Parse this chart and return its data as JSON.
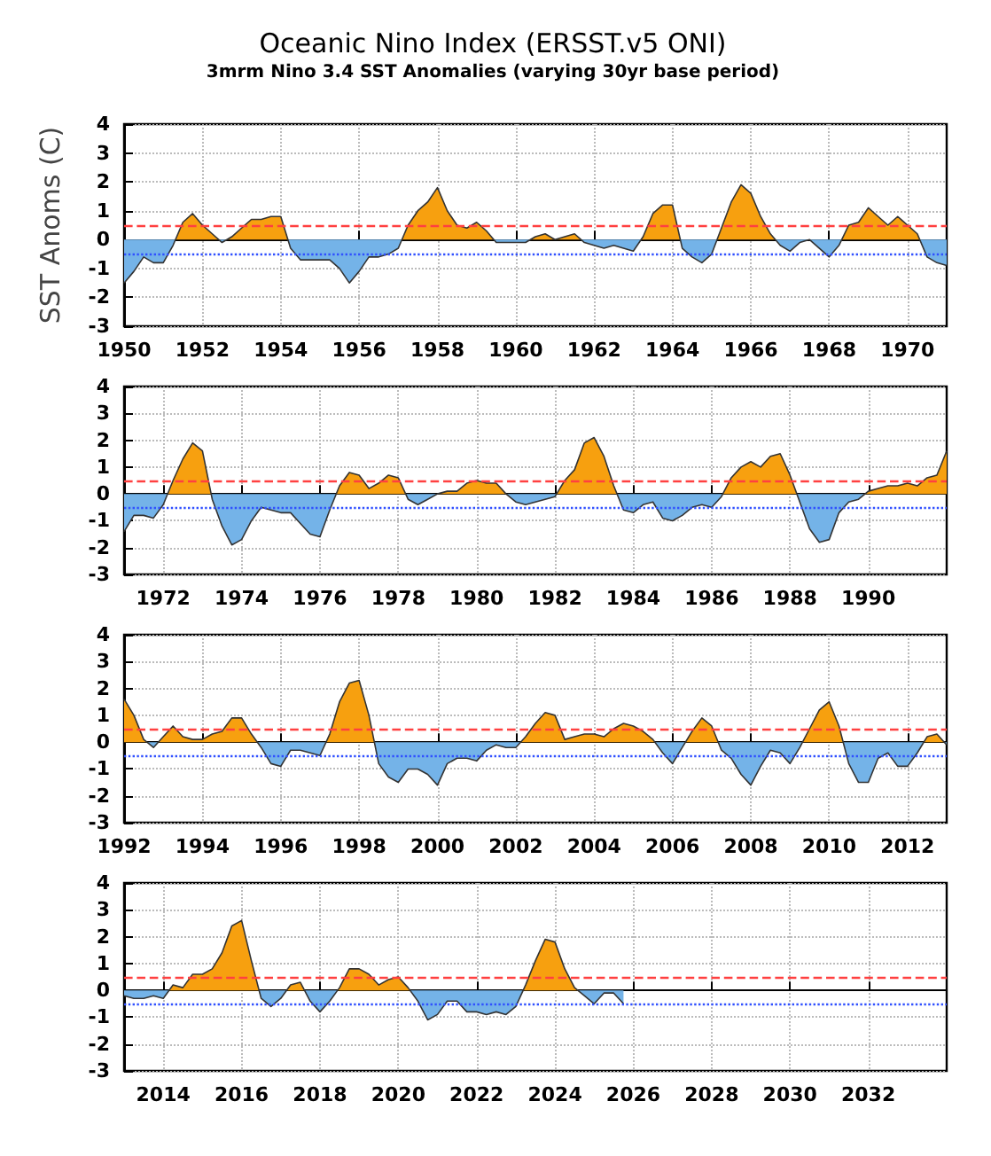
{
  "chart_data": [
    {
      "type": "area",
      "title": "Oceanic Nino Index (ERSST.v5 ONI)",
      "subtitle": "3mrm Nino 3.4 SST Anomalies (varying 30yr base period)",
      "ylabel": "SST Anoms (C)",
      "x": [
        1950,
        1950.25,
        1950.5,
        1950.75,
        1951,
        1951.25,
        1951.5,
        1951.75,
        1952,
        1952.25,
        1952.5,
        1952.75,
        1953,
        1953.25,
        1953.5,
        1953.75,
        1954,
        1954.25,
        1954.5,
        1954.75,
        1955,
        1955.25,
        1955.5,
        1955.75,
        1956,
        1956.25,
        1956.5,
        1956.75,
        1957,
        1957.25,
        1957.5,
        1957.75,
        1958,
        1958.25,
        1958.5,
        1958.75,
        1959,
        1959.25,
        1959.5,
        1959.75,
        1960,
        1960.25,
        1960.5,
        1960.75,
        1961,
        1961.25,
        1961.5,
        1961.75,
        1962,
        1962.25,
        1962.5,
        1962.75,
        1963,
        1963.25,
        1963.5,
        1963.75,
        1964,
        1964.25,
        1964.5,
        1964.75,
        1965,
        1965.25,
        1965.5,
        1965.75,
        1966,
        1966.25,
        1966.5,
        1966.75,
        1967,
        1967.25,
        1967.5,
        1967.75,
        1968,
        1968.25,
        1968.5,
        1968.75,
        1969,
        1969.25,
        1969.5,
        1969.75,
        1970,
        1970.25,
        1970.5,
        1970.75,
        1971
      ],
      "series": [
        {
          "colors": [
            "#74b3e8",
            "#74b3e8",
            "#74b3e8",
            "#74b3e8",
            "#74b3e8",
            "#74b3e8",
            "#f7a00f",
            "#f7a00f",
            "#f7a00f",
            "#f7a00f",
            "#74b3e8",
            "#f7a00f",
            "#f7a00f",
            "#f7a00f",
            "#f7a00f",
            "#f7a00f",
            "#f7a00f",
            "#74b3e8",
            "#74b3e8",
            "#74b3e8",
            "#74b3e8",
            "#74b3e8",
            "#74b3e8",
            "#74b3e8",
            "#74b3e8",
            "#74b3e8",
            "#74b3e8",
            "#74b3e8",
            "#74b3e8",
            "#f7a00f",
            "#f7a00f",
            "#f7a00f",
            "#f7a00f",
            "#f7a00f",
            "#f7a00f",
            "#f7a00f",
            "#f7a00f",
            "#f7a00f",
            "#74b3e8",
            "#74b3e8",
            "#74b3e8",
            "#74b3e8",
            "#f7a00f",
            "#f7a00f",
            "#f7a00f",
            "#f7a00f",
            "#f7a00f",
            "#74b3e8",
            "#74b3e8",
            "#74b3e8",
            "#74b3e8",
            "#74b3e8",
            "#74b3e8",
            "#f7a00f",
            "#f7a00f",
            "#f7a00f",
            "#f7a00f",
            "#74b3e8",
            "#74b3e8",
            "#74b3e8",
            "#74b3e8",
            "#f7a00f",
            "#f7a00f",
            "#f7a00f",
            "#f7a00f",
            "#f7a00f",
            "#f7a00f",
            "#74b3e8",
            "#74b3e8",
            "#74b3e8",
            "#f7a00f",
            "#74b3e8",
            "#74b3e8",
            "#74b3e8",
            "#f7a00f",
            "#f7a00f",
            "#f7a00f",
            "#f7a00f",
            "#f7a00f",
            "#f7a00f",
            "#f7a00f",
            "#f7a00f",
            "#74b3e8",
            "#74b3e8",
            "#74b3e8"
          ],
          "values": [
            -1.5,
            -1.1,
            -0.6,
            -0.8,
            -0.8,
            -0.2,
            0.6,
            0.9,
            0.5,
            0.2,
            -0.1,
            0.1,
            0.4,
            0.7,
            0.7,
            0.8,
            0.8,
            -0.3,
            -0.7,
            -0.7,
            -0.7,
            -0.7,
            -1.0,
            -1.5,
            -1.1,
            -0.6,
            -0.6,
            -0.5,
            -0.3,
            0.5,
            1.0,
            1.3,
            1.8,
            1.0,
            0.5,
            0.4,
            0.6,
            0.3,
            -0.1,
            -0.1,
            -0.1,
            -0.1,
            0.1,
            0.2,
            0.0,
            0.1,
            0.2,
            -0.1,
            -0.2,
            -0.3,
            -0.2,
            -0.3,
            -0.4,
            0.1,
            0.9,
            1.2,
            1.2,
            -0.3,
            -0.6,
            -0.8,
            -0.5,
            0.4,
            1.3,
            1.9,
            1.6,
            0.8,
            0.2,
            -0.2,
            -0.4,
            -0.1,
            0.0,
            -0.3,
            -0.6,
            -0.2,
            0.5,
            0.6,
            1.1,
            0.8,
            0.5,
            0.8,
            0.5,
            0.2,
            -0.6,
            -0.8,
            -0.9
          ]
        }
      ],
      "xlim": [
        1950,
        1971
      ],
      "xticks": [
        1950,
        1952,
        1954,
        1956,
        1958,
        1960,
        1962,
        1964,
        1966,
        1968,
        1970
      ],
      "ylim": [
        -3,
        4
      ],
      "yticks": [
        -3,
        -2,
        -1,
        0,
        1,
        2,
        3,
        4
      ],
      "grid": true,
      "ref_lines": [
        {
          "axis": "y",
          "value": 0.5,
          "color": "#ff4040",
          "line_style": "dashed"
        },
        {
          "axis": "y",
          "value": -0.5,
          "color": "#3050ff",
          "line_style": "dotted"
        }
      ]
    },
    {
      "type": "area",
      "x": [
        1971,
        1971.25,
        1971.5,
        1971.75,
        1972,
        1972.25,
        1972.5,
        1972.75,
        1973,
        1973.25,
        1973.5,
        1973.75,
        1974,
        1974.25,
        1974.5,
        1974.75,
        1975,
        1975.25,
        1975.5,
        1975.75,
        1976,
        1976.25,
        1976.5,
        1976.75,
        1977,
        1977.25,
        1977.5,
        1977.75,
        1978,
        1978.25,
        1978.5,
        1978.75,
        1979,
        1979.25,
        1979.5,
        1979.75,
        1980,
        1980.25,
        1980.5,
        1980.75,
        1981,
        1981.25,
        1981.5,
        1981.75,
        1982,
        1982.25,
        1982.5,
        1982.75,
        1983,
        1983.25,
        1983.5,
        1983.75,
        1984,
        1984.25,
        1984.5,
        1984.75,
        1985,
        1985.25,
        1985.5,
        1985.75,
        1986,
        1986.25,
        1986.5,
        1986.75,
        1987,
        1987.25,
        1987.5,
        1987.75,
        1988,
        1988.25,
        1988.5,
        1988.75,
        1989,
        1989.25,
        1989.5,
        1989.75,
        1990,
        1990.25,
        1990.5,
        1990.75,
        1991,
        1991.25,
        1991.5,
        1991.75,
        1992
      ],
      "series": [
        {
          "colors": [
            "#74b3e8",
            "#74b3e8",
            "#74b3e8",
            "#74b3e8",
            "#74b3e8",
            "#f7a00f",
            "#f7a00f",
            "#f7a00f",
            "#f7a00f",
            "#74b3e8",
            "#74b3e8",
            "#74b3e8",
            "#74b3e8",
            "#74b3e8",
            "#74b3e8",
            "#74b3e8",
            "#74b3e8",
            "#74b3e8",
            "#74b3e8",
            "#74b3e8",
            "#74b3e8",
            "#74b3e8",
            "#f7a00f",
            "#f7a00f",
            "#f7a00f",
            "#f7a00f",
            "#f7a00f",
            "#f7a00f",
            "#f7a00f",
            "#74b3e8",
            "#74b3e8",
            "#74b3e8",
            "#f7a00f",
            "#f7a00f",
            "#f7a00f",
            "#f7a00f",
            "#f7a00f",
            "#f7a00f",
            "#f7a00f",
            "#f7a00f",
            "#74b3e8",
            "#74b3e8",
            "#74b3e8",
            "#74b3e8",
            "#74b3e8",
            "#f7a00f",
            "#f7a00f",
            "#f7a00f",
            "#f7a00f",
            "#f7a00f",
            "#f7a00f",
            "#74b3e8",
            "#74b3e8",
            "#74b3e8",
            "#74b3e8",
            "#74b3e8",
            "#74b3e8",
            "#74b3e8",
            "#74b3e8",
            "#74b3e8",
            "#74b3e8",
            "#74b3e8",
            "#f7a00f",
            "#f7a00f",
            "#f7a00f",
            "#f7a00f",
            "#f7a00f",
            "#f7a00f",
            "#f7a00f",
            "#74b3e8",
            "#74b3e8",
            "#74b3e8",
            "#74b3e8",
            "#74b3e8",
            "#74b3e8",
            "#74b3e8",
            "#f7a00f",
            "#f7a00f",
            "#f7a00f",
            "#f7a00f",
            "#f7a00f",
            "#f7a00f",
            "#f7a00f",
            "#f7a00f",
            "#f7a00f"
          ],
          "values": [
            -1.4,
            -0.8,
            -0.8,
            -0.9,
            -0.4,
            0.5,
            1.3,
            1.9,
            1.6,
            -0.2,
            -1.2,
            -1.9,
            -1.7,
            -1.0,
            -0.5,
            -0.6,
            -0.7,
            -0.7,
            -1.1,
            -1.5,
            -1.6,
            -0.6,
            0.3,
            0.8,
            0.7,
            0.2,
            0.4,
            0.7,
            0.6,
            -0.2,
            -0.4,
            -0.2,
            0.0,
            0.1,
            0.1,
            0.4,
            0.5,
            0.4,
            0.4,
            0.0,
            -0.3,
            -0.4,
            -0.3,
            -0.2,
            -0.1,
            0.5,
            0.9,
            1.9,
            2.1,
            1.4,
            0.3,
            -0.6,
            -0.7,
            -0.4,
            -0.3,
            -0.9,
            -1.0,
            -0.8,
            -0.5,
            -0.4,
            -0.5,
            -0.1,
            0.6,
            1.0,
            1.2,
            1.0,
            1.4,
            1.5,
            0.7,
            -0.3,
            -1.3,
            -1.8,
            -1.7,
            -0.7,
            -0.3,
            -0.2,
            0.1,
            0.2,
            0.3,
            0.3,
            0.4,
            0.3,
            0.6,
            0.7,
            1.6
          ]
        }
      ],
      "xlim": [
        1971,
        1992
      ],
      "xticks": [
        1972,
        1974,
        1976,
        1978,
        1980,
        1982,
        1984,
        1986,
        1988,
        1990
      ],
      "ylim": [
        -3,
        4
      ],
      "yticks": [
        -3,
        -2,
        -1,
        0,
        1,
        2,
        3,
        4
      ],
      "grid": true,
      "ref_lines": [
        {
          "axis": "y",
          "value": 0.5,
          "color": "#ff4040",
          "line_style": "dashed"
        },
        {
          "axis": "y",
          "value": -0.5,
          "color": "#3050ff",
          "line_style": "dotted"
        }
      ]
    },
    {
      "type": "area",
      "x": [
        1992,
        1992.25,
        1992.5,
        1992.75,
        1993,
        1993.25,
        1993.5,
        1993.75,
        1994,
        1994.25,
        1994.5,
        1994.75,
        1995,
        1995.25,
        1995.5,
        1995.75,
        1996,
        1996.25,
        1996.5,
        1996.75,
        1997,
        1997.25,
        1997.5,
        1997.75,
        1998,
        1998.25,
        1998.5,
        1998.75,
        1999,
        1999.25,
        1999.5,
        1999.75,
        2000,
        2000.25,
        2000.5,
        2000.75,
        2001,
        2001.25,
        2001.5,
        2001.75,
        2002,
        2002.25,
        2002.5,
        2002.75,
        2003,
        2003.25,
        2003.5,
        2003.75,
        2004,
        2004.25,
        2004.5,
        2004.75,
        2005,
        2005.25,
        2005.5,
        2005.75,
        2006,
        2006.25,
        2006.5,
        2006.75,
        2007,
        2007.25,
        2007.5,
        2007.75,
        2008,
        2008.25,
        2008.5,
        2008.75,
        2009,
        2009.25,
        2009.5,
        2009.75,
        2010,
        2010.25,
        2010.5,
        2010.75,
        2011,
        2011.25,
        2011.5,
        2011.75,
        2012,
        2012.25,
        2012.5,
        2012.75,
        2013
      ],
      "series": [
        {
          "colors": [
            "#f7a00f",
            "#f7a00f",
            "#f7a00f",
            "#74b3e8",
            "#f7a00f",
            "#f7a00f",
            "#f7a00f",
            "#f7a00f",
            "#f7a00f",
            "#f7a00f",
            "#f7a00f",
            "#f7a00f",
            "#f7a00f",
            "#f7a00f",
            "#74b3e8",
            "#74b3e8",
            "#74b3e8",
            "#74b3e8",
            "#74b3e8",
            "#74b3e8",
            "#74b3e8",
            "#f7a00f",
            "#f7a00f",
            "#f7a00f",
            "#f7a00f",
            "#f7a00f",
            "#74b3e8",
            "#74b3e8",
            "#74b3e8",
            "#74b3e8",
            "#74b3e8",
            "#74b3e8",
            "#74b3e8",
            "#74b3e8",
            "#74b3e8",
            "#74b3e8",
            "#74b3e8",
            "#74b3e8",
            "#74b3e8",
            "#74b3e8",
            "#74b3e8",
            "#f7a00f",
            "#f7a00f",
            "#f7a00f",
            "#f7a00f",
            "#f7a00f",
            "#f7a00f",
            "#f7a00f",
            "#f7a00f",
            "#f7a00f",
            "#f7a00f",
            "#f7a00f",
            "#f7a00f",
            "#f7a00f",
            "#f7a00f",
            "#74b3e8",
            "#74b3e8",
            "#74b3e8",
            "#f7a00f",
            "#f7a00f",
            "#f7a00f",
            "#74b3e8",
            "#74b3e8",
            "#74b3e8",
            "#74b3e8",
            "#74b3e8",
            "#74b3e8",
            "#74b3e8",
            "#74b3e8",
            "#74b3e8",
            "#f7a00f",
            "#f7a00f",
            "#f7a00f",
            "#f7a00f",
            "#74b3e8",
            "#74b3e8",
            "#74b3e8",
            "#74b3e8",
            "#74b3e8",
            "#74b3e8",
            "#74b3e8",
            "#74b3e8",
            "#f7a00f",
            "#f7a00f",
            "#74b3e8"
          ],
          "values": [
            1.6,
            1.0,
            0.1,
            -0.2,
            0.2,
            0.6,
            0.2,
            0.1,
            0.1,
            0.3,
            0.4,
            0.9,
            0.9,
            0.3,
            -0.2,
            -0.8,
            -0.9,
            -0.3,
            -0.3,
            -0.4,
            -0.5,
            0.3,
            1.5,
            2.2,
            2.3,
            1.0,
            -0.8,
            -1.3,
            -1.5,
            -1.0,
            -1.0,
            -1.2,
            -1.6,
            -0.8,
            -0.6,
            -0.6,
            -0.7,
            -0.3,
            -0.1,
            -0.2,
            -0.2,
            0.2,
            0.7,
            1.1,
            1.0,
            0.1,
            0.2,
            0.3,
            0.3,
            0.2,
            0.5,
            0.7,
            0.6,
            0.4,
            0.1,
            -0.4,
            -0.8,
            -0.2,
            0.4,
            0.9,
            0.6,
            -0.3,
            -0.6,
            -1.2,
            -1.6,
            -0.9,
            -0.3,
            -0.4,
            -0.8,
            -0.2,
            0.5,
            1.2,
            1.5,
            0.6,
            -0.8,
            -1.5,
            -1.5,
            -0.6,
            -0.4,
            -0.9,
            -0.9,
            -0.4,
            0.2,
            0.3,
            -0.1
          ]
        }
      ],
      "xlim": [
        1992,
        2013
      ],
      "xticks": [
        1992,
        1994,
        1996,
        1998,
        2000,
        2002,
        2004,
        2006,
        2008,
        2010,
        2012
      ],
      "ylim": [
        -3,
        4
      ],
      "yticks": [
        -3,
        -2,
        -1,
        0,
        1,
        2,
        3,
        4
      ],
      "grid": true,
      "ref_lines": [
        {
          "axis": "y",
          "value": 0.5,
          "color": "#ff4040",
          "line_style": "dashed"
        },
        {
          "axis": "y",
          "value": -0.5,
          "color": "#3050ff",
          "line_style": "dotted"
        }
      ]
    },
    {
      "type": "area",
      "x": [
        2013,
        2013.25,
        2013.5,
        2013.75,
        2014,
        2014.25,
        2014.5,
        2014.75,
        2015,
        2015.25,
        2015.5,
        2015.75,
        2016,
        2016.25,
        2016.5,
        2016.75,
        2017,
        2017.25,
        2017.5,
        2017.75,
        2018,
        2018.25,
        2018.5,
        2018.75,
        2019,
        2019.25,
        2019.5,
        2019.75,
        2020,
        2020.25,
        2020.5,
        2020.75,
        2021,
        2021.25,
        2021.5,
        2021.75,
        2022,
        2022.25,
        2022.5,
        2022.75,
        2023,
        2023.25,
        2023.5,
        2023.75,
        2024,
        2024.25,
        2024.5,
        2024.75,
        2025,
        2025.25,
        2025.5,
        2025.75
      ],
      "series": [
        {
          "colors": [
            "#74b3e8",
            "#74b3e8",
            "#74b3e8",
            "#74b3e8",
            "#74b3e8",
            "#f7a00f",
            "#f7a00f",
            "#f7a00f",
            "#f7a00f",
            "#f7a00f",
            "#f7a00f",
            "#f7a00f",
            "#f7a00f",
            "#f7a00f",
            "#74b3e8",
            "#74b3e8",
            "#74b3e8",
            "#f7a00f",
            "#f7a00f",
            "#74b3e8",
            "#74b3e8",
            "#74b3e8",
            "#f7a00f",
            "#f7a00f",
            "#f7a00f",
            "#f7a00f",
            "#f7a00f",
            "#f7a00f",
            "#f7a00f",
            "#f7a00f",
            "#74b3e8",
            "#74b3e8",
            "#74b3e8",
            "#74b3e8",
            "#74b3e8",
            "#74b3e8",
            "#74b3e8",
            "#74b3e8",
            "#74b3e8",
            "#74b3e8",
            "#74b3e8",
            "#f7a00f",
            "#f7a00f",
            "#f7a00f",
            "#f7a00f",
            "#f7a00f",
            "#f7a00f",
            "#74b3e8",
            "#74b3e8",
            "#74b3e8",
            "#74b3e8",
            "#74b3e8"
          ],
          "values": [
            -0.2,
            -0.3,
            -0.3,
            -0.2,
            -0.3,
            0.2,
            0.1,
            0.6,
            0.6,
            0.8,
            1.4,
            2.4,
            2.6,
            1.1,
            -0.3,
            -0.6,
            -0.3,
            0.2,
            0.3,
            -0.4,
            -0.8,
            -0.4,
            0.1,
            0.8,
            0.8,
            0.6,
            0.2,
            0.4,
            0.5,
            0.1,
            -0.4,
            -1.1,
            -0.9,
            -0.4,
            -0.4,
            -0.8,
            -0.8,
            -0.9,
            -0.8,
            -0.9,
            -0.6,
            0.2,
            1.1,
            1.9,
            1.8,
            0.8,
            0.1,
            -0.2,
            -0.5,
            -0.1,
            -0.1,
            -0.5
          ]
        }
      ],
      "xlim": [
        2013,
        2034
      ],
      "xticks": [
        2014,
        2016,
        2018,
        2020,
        2022,
        2024,
        2026,
        2028,
        2030,
        2032
      ],
      "ylim": [
        -3,
        4
      ],
      "yticks": [
        -3,
        -2,
        -1,
        0,
        1,
        2,
        3,
        4
      ],
      "grid": true,
      "ref_lines": [
        {
          "axis": "y",
          "value": 0.5,
          "color": "#ff4040",
          "line_style": "dashed"
        },
        {
          "axis": "y",
          "value": -0.5,
          "color": "#3050ff",
          "line_style": "dotted"
        }
      ]
    }
  ]
}
